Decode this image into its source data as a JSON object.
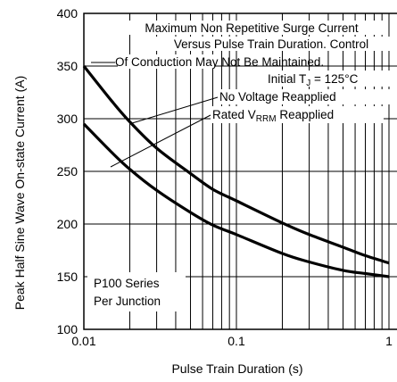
{
  "chart_data": {
    "type": "line",
    "xlabel": "Pulse Train Duration (s)",
    "ylabel": "Peak Half Sine Wave On-state Current (A)",
    "xscale": "log",
    "xlim": [
      0.01,
      1
    ],
    "ylim": [
      100,
      400
    ],
    "grid": true,
    "x_ticks": [
      "0.01",
      "0.1",
      "1"
    ],
    "y_ticks": [
      "100",
      "150",
      "200",
      "250",
      "300",
      "350",
      "400"
    ],
    "series": [
      {
        "name": "No Voltage Reapplied",
        "x": [
          0.01,
          0.015,
          0.02,
          0.03,
          0.05,
          0.07,
          0.1,
          0.2,
          0.3,
          0.5,
          0.7,
          1.0
        ],
        "y": [
          350,
          318,
          297,
          272,
          248,
          233,
          222,
          201,
          190,
          178,
          170,
          163
        ]
      },
      {
        "name": "Rated VRRM Reapplied",
        "x": [
          0.01,
          0.015,
          0.02,
          0.03,
          0.05,
          0.07,
          0.1,
          0.2,
          0.3,
          0.5,
          0.7,
          1.0
        ],
        "y": [
          295,
          269,
          252,
          232,
          211,
          199,
          190,
          172,
          164,
          156,
          153,
          150
        ]
      }
    ],
    "annotations": {
      "title_line1": "Maximum Non Repetitive Surge Current",
      "title_line2": "Versus Pulse Train Duration. Control",
      "title_line3": "Of Conduction May Not Be Maintained.",
      "initial_tj_prefix": "Initial T",
      "initial_tj_sub": "J",
      "initial_tj_suffix": " = 125°C",
      "no_voltage": "No Voltage Reapplied",
      "rated_prefix": "Rated V",
      "rated_sub": "RRM",
      "rated_suffix": " Reapplied",
      "box_line1": "P100 Series",
      "box_line2": "Per Junction"
    }
  }
}
